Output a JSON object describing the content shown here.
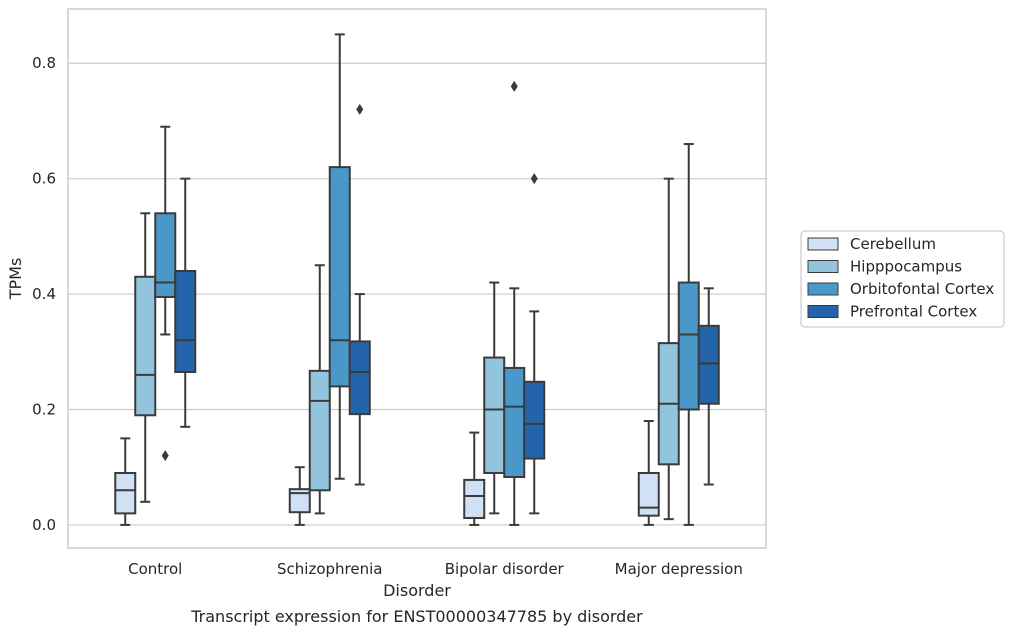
{
  "caption": "Transcript expression for ENST00000347785 by disorder",
  "colors": {
    "Cerebellum": "#cfe1f2",
    "Hipppocampus": "#93c4de",
    "Orbitofontal Cortex": "#4a98c9",
    "Prefrontal Cortex": "#2464aa",
    "line": "#3b3b3b",
    "grid": "#cccccc",
    "frame": "#cccccc"
  },
  "chart_data": {
    "type": "box",
    "xlabel": "Disorder",
    "ylabel": "TPMs",
    "ylim": [
      -0.04,
      0.894
    ],
    "yticks": [
      0.0,
      0.2,
      0.4,
      0.6,
      0.8
    ],
    "ytick_labels": [
      "0.0",
      "0.2",
      "0.4",
      "0.6",
      "0.8"
    ],
    "grid": "horizontal",
    "legend_position": "right",
    "categories": [
      "Control",
      "Schizophrenia",
      "Bipolar disorder",
      "Major depression"
    ],
    "series": [
      {
        "name": "Cerebellum",
        "boxes": [
          {
            "min": 0.0,
            "q1": 0.02,
            "median": 0.06,
            "q3": 0.09,
            "max": 0.15,
            "outliers": []
          },
          {
            "min": 0.0,
            "q1": 0.022,
            "median": 0.055,
            "q3": 0.062,
            "max": 0.1,
            "outliers": []
          },
          {
            "min": 0.0,
            "q1": 0.012,
            "median": 0.05,
            "q3": 0.078,
            "max": 0.16,
            "outliers": []
          },
          {
            "min": 0.0,
            "q1": 0.016,
            "median": 0.03,
            "q3": 0.09,
            "max": 0.18,
            "outliers": []
          }
        ]
      },
      {
        "name": "Hipppocampus",
        "boxes": [
          {
            "min": 0.04,
            "q1": 0.19,
            "median": 0.26,
            "q3": 0.43,
            "max": 0.54,
            "outliers": []
          },
          {
            "min": 0.02,
            "q1": 0.06,
            "median": 0.215,
            "q3": 0.267,
            "max": 0.45,
            "outliers": []
          },
          {
            "min": 0.02,
            "q1": 0.09,
            "median": 0.2,
            "q3": 0.29,
            "max": 0.42,
            "outliers": []
          },
          {
            "min": 0.01,
            "q1": 0.105,
            "median": 0.21,
            "q3": 0.315,
            "max": 0.6,
            "outliers": []
          }
        ]
      },
      {
        "name": "Orbitofontal Cortex",
        "boxes": [
          {
            "min": 0.33,
            "q1": 0.395,
            "median": 0.42,
            "q3": 0.54,
            "max": 0.69,
            "outliers": [
              0.12
            ]
          },
          {
            "min": 0.08,
            "q1": 0.24,
            "median": 0.32,
            "q3": 0.62,
            "max": 0.85,
            "outliers": []
          },
          {
            "min": 0.0,
            "q1": 0.083,
            "median": 0.205,
            "q3": 0.272,
            "max": 0.41,
            "outliers": [
              0.76
            ]
          },
          {
            "min": 0.0,
            "q1": 0.2,
            "median": 0.33,
            "q3": 0.42,
            "max": 0.66,
            "outliers": []
          }
        ]
      },
      {
        "name": "Prefrontal Cortex",
        "boxes": [
          {
            "min": 0.17,
            "q1": 0.265,
            "median": 0.32,
            "q3": 0.44,
            "max": 0.6,
            "outliers": []
          },
          {
            "min": 0.07,
            "q1": 0.192,
            "median": 0.265,
            "q3": 0.318,
            "max": 0.4,
            "outliers": [
              0.72
            ]
          },
          {
            "min": 0.02,
            "q1": 0.115,
            "median": 0.175,
            "q3": 0.248,
            "max": 0.37,
            "outliers": [
              0.6
            ]
          },
          {
            "min": 0.07,
            "q1": 0.21,
            "median": 0.28,
            "q3": 0.345,
            "max": 0.41,
            "outliers": []
          }
        ]
      }
    ]
  }
}
